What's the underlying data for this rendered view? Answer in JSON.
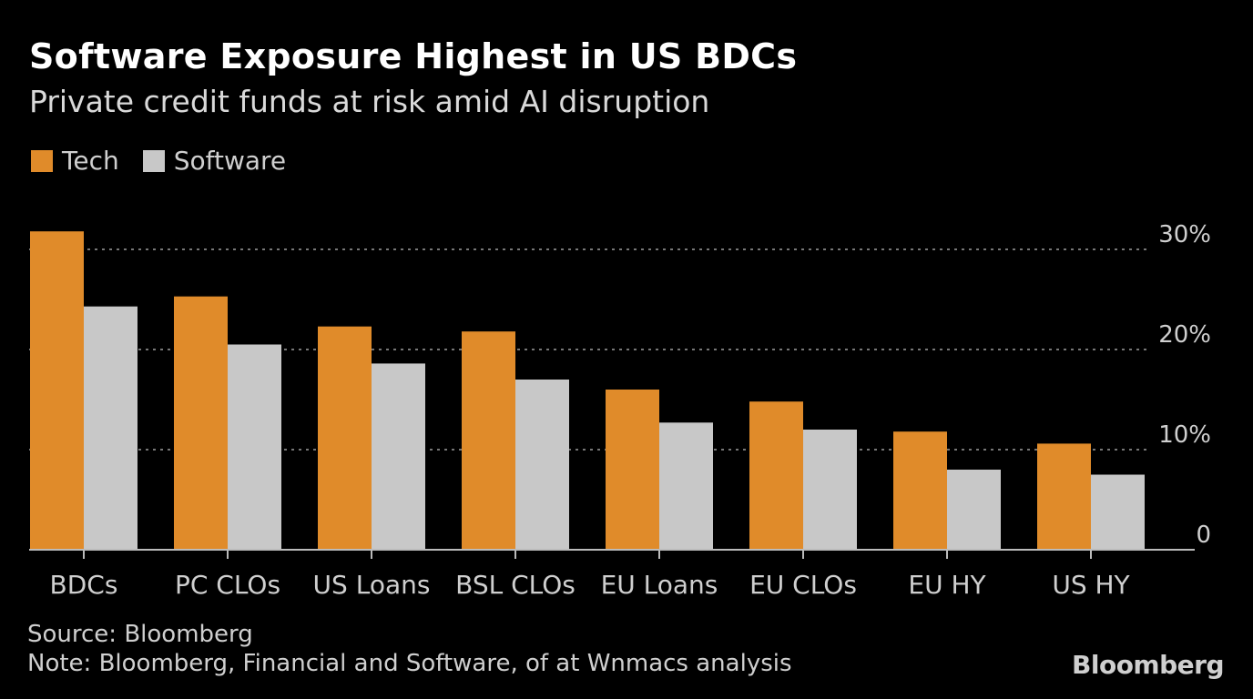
{
  "header": {
    "title": "Software Exposure Highest in US BDCs",
    "subtitle": "Private credit funds at risk amid AI disruption"
  },
  "footer": {
    "source": "Source: Bloomberg",
    "note": "Note: Bloomberg, Financial and Software, of at Wnmacs analysis",
    "brand": "Bloomberg"
  },
  "colors": {
    "tech": "#e08b2a",
    "software": "#c8c8c8",
    "grid": "#777777",
    "text": "#cfcfcf"
  },
  "chart_data": {
    "type": "bar",
    "categories": [
      "BDCs",
      "PC CLOs",
      "US Loans",
      "BSL CLOs",
      "EU Loans",
      "EU CLOs",
      "EU HY",
      "US HY"
    ],
    "series": [
      {
        "name": "Tech",
        "values": [
          31.8,
          25.3,
          22.3,
          21.8,
          16.0,
          14.8,
          11.8,
          10.6
        ]
      },
      {
        "name": "Software",
        "values": [
          24.3,
          20.5,
          18.6,
          17.0,
          12.7,
          12.0,
          8.0,
          7.5
        ]
      }
    ],
    "y_ticks": [
      "0",
      "10%",
      "20%",
      "30%"
    ],
    "y_tick_values": [
      0,
      10,
      20,
      30
    ],
    "ylim": [
      0,
      30
    ],
    "grid": true,
    "legend": "top-left"
  }
}
